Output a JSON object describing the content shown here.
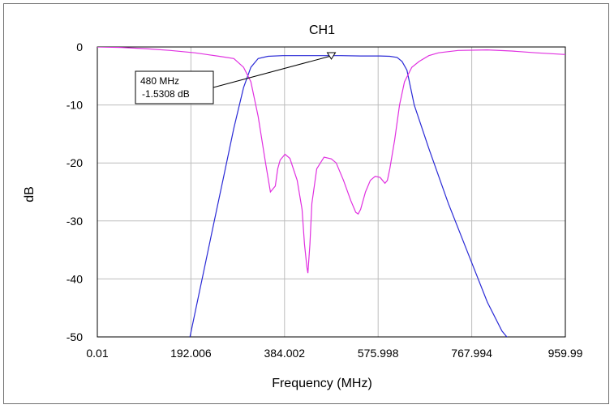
{
  "chart_data": {
    "type": "line",
    "title": "CH1",
    "xlabel": "Frequency (MHz)",
    "ylabel": "dB",
    "xlim": [
      0.01,
      959.99
    ],
    "ylim": [
      -50,
      0
    ],
    "grid": true,
    "x_ticks": [
      "0.01",
      "192.006",
      "384.002",
      "575.998",
      "767.994",
      "959.99"
    ],
    "y_ticks": [
      "0",
      "-10",
      "-20",
      "-30",
      "-40",
      "-50"
    ],
    "series": [
      {
        "color": "#2a2ad6",
        "x": [
          190,
          205,
          220,
          240,
          260,
          280,
          300,
          315,
          330,
          350,
          380,
          420,
          460,
          500,
          540,
          580,
          600,
          615,
          625,
          635,
          650,
          680,
          720,
          760,
          800,
          830,
          845
        ],
        "y": [
          -50,
          -44,
          -38,
          -30,
          -22,
          -14,
          -7,
          -3.5,
          -2,
          -1.6,
          -1.5,
          -1.5,
          -1.5,
          -1.5,
          -1.55,
          -1.55,
          -1.6,
          -1.8,
          -2.5,
          -4,
          -10,
          -17.5,
          -27,
          -35.5,
          -44,
          -49,
          -50.5
        ]
      },
      {
        "color": "#e030e0",
        "x": [
          0.01,
          50,
          100,
          150,
          200,
          250,
          280,
          300,
          315,
          330,
          345,
          355,
          365,
          370,
          375,
          385,
          395,
          410,
          420,
          425,
          430,
          432,
          436,
          440,
          450,
          465,
          480,
          490,
          505,
          520,
          530,
          535,
          540,
          550,
          560,
          570,
          580,
          590,
          595,
          600,
          610,
          620,
          630,
          645,
          660,
          680,
          700,
          740,
          800,
          850,
          900,
          959.99
        ],
        "y": [
          0,
          -0.1,
          -0.3,
          -0.6,
          -1,
          -1.6,
          -2,
          -3.5,
          -6,
          -12,
          -20,
          -25,
          -24,
          -21,
          -19.5,
          -18.5,
          -19.2,
          -23,
          -28,
          -34,
          -38,
          -39,
          -34,
          -27,
          -21,
          -19,
          -19.3,
          -20,
          -23,
          -26.5,
          -28.5,
          -28.8,
          -28,
          -25,
          -23,
          -22.3,
          -22.5,
          -23.5,
          -23,
          -21,
          -16,
          -10,
          -6,
          -3.5,
          -2.5,
          -1.5,
          -1,
          -0.6,
          -0.5,
          -0.7,
          -1,
          -1.3
        ]
      }
    ],
    "annotation": {
      "x": 480,
      "y": -1.5308,
      "line1": "480 MHz",
      "line2": "-1.5308 dB"
    }
  }
}
